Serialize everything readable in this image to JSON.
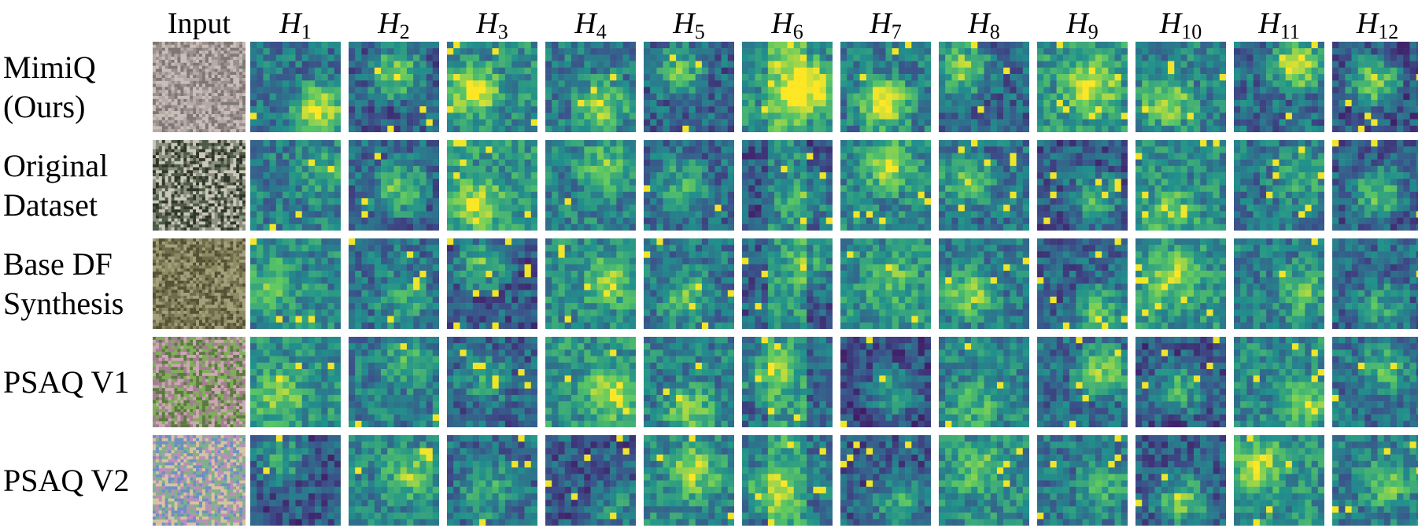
{
  "figure": {
    "input_header": "Input",
    "heads": [
      {
        "symbol": "H",
        "index": "1"
      },
      {
        "symbol": "H",
        "index": "2"
      },
      {
        "symbol": "H",
        "index": "3"
      },
      {
        "symbol": "H",
        "index": "4"
      },
      {
        "symbol": "H",
        "index": "5"
      },
      {
        "symbol": "H",
        "index": "6"
      },
      {
        "symbol": "H",
        "index": "7"
      },
      {
        "symbol": "H",
        "index": "8"
      },
      {
        "symbol": "H",
        "index": "9"
      },
      {
        "symbol": "H",
        "index": "10"
      },
      {
        "symbol": "H",
        "index": "11"
      },
      {
        "symbol": "H",
        "index": "12"
      }
    ],
    "rows": [
      {
        "lines": [
          "MimiQ",
          "(Ours)"
        ]
      },
      {
        "lines": [
          "Original",
          "Dataset"
        ]
      },
      {
        "lines": [
          "Base DF",
          "Synthesis"
        ]
      },
      {
        "lines": [
          "PSAQ V1"
        ]
      },
      {
        "lines": [
          "PSAQ V2"
        ]
      }
    ],
    "colormap": [
      "#440154",
      "#3b528b",
      "#21918c",
      "#5ec962",
      "#fde725"
    ],
    "input_palettes": [
      [
        "#9a8f8c",
        "#b5a9a6",
        "#7f7774",
        "#c9bdb8"
      ],
      [
        "#4e5a46",
        "#8a8f7e",
        "#2f3529",
        "#c8c6b8"
      ],
      [
        "#6f6b4a",
        "#8c8a62",
        "#545033",
        "#a39f7a"
      ],
      [
        "#a07f8f",
        "#7fae58",
        "#c9a7b0",
        "#5b7a3f"
      ],
      [
        "#b98fb8",
        "#7fb08a",
        "#d6c3a0",
        "#6e8fc2"
      ]
    ]
  }
}
